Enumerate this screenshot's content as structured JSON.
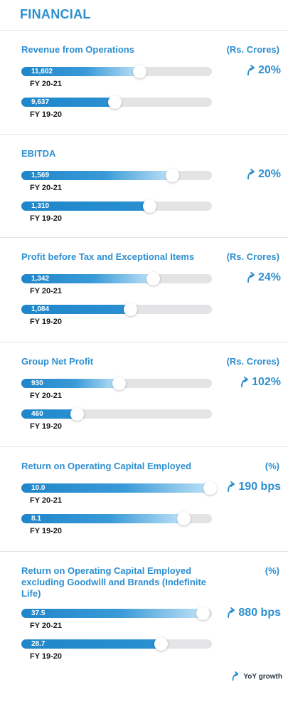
{
  "header": {
    "title": "FINANCIAL"
  },
  "legend": {
    "label": "YoY growth",
    "icon": "curved-up-arrow-icon"
  },
  "colors": {
    "accent": "#2e8fd0",
    "bar_fill": "#1f86c9",
    "track": "#e4e4e6"
  },
  "chart_data": [
    {
      "type": "bar",
      "title": "Revenue from Operations",
      "unit": "(Rs. Crores)",
      "growth": "20%",
      "categories": [
        "FY 20-21",
        "FY 19-20"
      ],
      "values": [
        11602,
        9637
      ],
      "value_labels": [
        "11,602",
        "9,637"
      ],
      "fill_fraction": [
        0.62,
        0.49
      ]
    },
    {
      "type": "bar",
      "title": "EBITDA",
      "unit": "",
      "growth": "20%",
      "categories": [
        "FY 20-21",
        "FY 19-20"
      ],
      "values": [
        1569,
        1310
      ],
      "value_labels": [
        "1,569",
        "1,310"
      ],
      "fill_fraction": [
        0.79,
        0.67
      ]
    },
    {
      "type": "bar",
      "title": "Profit before Tax and Exceptional Items",
      "unit": "(Rs. Crores)",
      "growth": "24%",
      "categories": [
        "FY 20-21",
        "FY 19-20"
      ],
      "values": [
        1342,
        1084
      ],
      "value_labels": [
        "1,342",
        "1,084"
      ],
      "fill_fraction": [
        0.69,
        0.57
      ]
    },
    {
      "type": "bar",
      "title": "Group Net Profit",
      "unit": "(Rs. Crores)",
      "growth": "102%",
      "categories": [
        "FY 20-21",
        "FY 19-20"
      ],
      "values": [
        930,
        460
      ],
      "value_labels": [
        "930",
        "460"
      ],
      "fill_fraction": [
        0.51,
        0.29
      ]
    },
    {
      "type": "bar",
      "title": "Return on Operating Capital Employed",
      "unit": "(%)",
      "growth": "190 bps",
      "categories": [
        "FY 20-21",
        "FY 19-20"
      ],
      "values": [
        10.0,
        8.1
      ],
      "value_labels": [
        "10.0",
        "8.1"
      ],
      "fill_fraction": [
        0.99,
        0.85
      ]
    },
    {
      "type": "bar",
      "title": "Return on Operating Capital Employed excluding Goodwill and Brands (Indefinite Life)",
      "unit": "(%)",
      "growth": "880 bps",
      "categories": [
        "FY 20-21",
        "FY 19-20"
      ],
      "values": [
        37.5,
        28.7
      ],
      "value_labels": [
        "37.5",
        "28.7"
      ],
      "fill_fraction": [
        0.95,
        0.73
      ]
    }
  ]
}
